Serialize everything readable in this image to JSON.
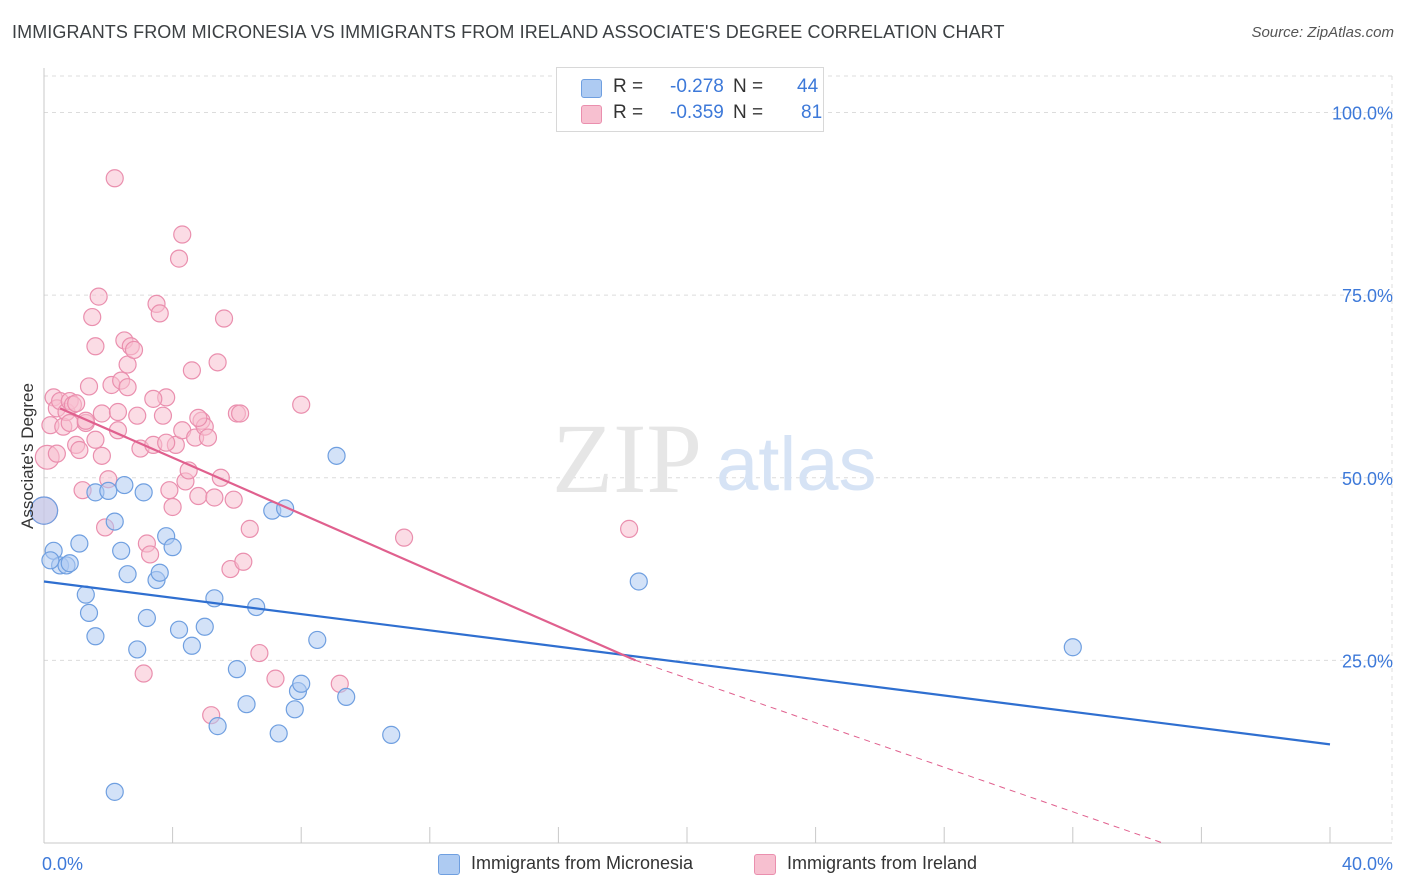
{
  "title": "IMMIGRANTS FROM MICRONESIA VS IMMIGRANTS FROM IRELAND ASSOCIATE'S DEGREE CORRELATION CHART",
  "source": "Source: ZipAtlas.com",
  "watermark": {
    "zip": "ZIP",
    "atlas": "atlas"
  },
  "legend": {
    "rows": [
      {
        "r_label": "R =",
        "r_value": "-0.278",
        "n_label": "N =",
        "n_value": "44"
      },
      {
        "r_label": "R =",
        "r_value": "-0.359",
        "n_label": "N =",
        "n_value": "81"
      }
    ]
  },
  "colors": {
    "blue_fill": "#aecbf2",
    "blue_stroke": "#6f9fe0",
    "blue_line": "#2f6fd0",
    "pink_fill": "#f7c0d0",
    "pink_stroke": "#ea8fae",
    "pink_line": "#e0608e",
    "axis_text": "#3d79d9",
    "grid": "#dcdcdc"
  },
  "chart_data": {
    "type": "scatter",
    "xlabel": "",
    "ylabel": "Associate's Degree",
    "xlim": [
      0,
      40
    ],
    "ylim": [
      0,
      105
    ],
    "x_tick_labels": [
      {
        "value": 0,
        "label": "0.0%"
      },
      {
        "value": 40,
        "label": "40.0%"
      }
    ],
    "y_tick_labels": [
      {
        "value": 25,
        "label": "25.0%"
      },
      {
        "value": 50,
        "label": "50.0%"
      },
      {
        "value": 75,
        "label": "75.0%"
      },
      {
        "value": 100,
        "label": "100.0%"
      }
    ],
    "series": [
      {
        "name": "Immigrants from Micronesia",
        "color": "#6f9fe0",
        "points": [
          [
            0.0,
            45.5,
            1.6
          ],
          [
            0.3,
            40,
            1
          ],
          [
            0.5,
            38,
            1
          ],
          [
            0.7,
            38,
            1
          ],
          [
            0.8,
            38.3,
            1
          ],
          [
            1.1,
            41,
            1
          ],
          [
            1.3,
            34,
            1
          ],
          [
            1.4,
            31.5,
            1
          ],
          [
            1.6,
            28.3,
            1
          ],
          [
            1.6,
            48,
            1
          ],
          [
            2.0,
            48.2,
            1
          ],
          [
            2.2,
            7,
            1
          ],
          [
            2.2,
            44,
            1
          ],
          [
            2.4,
            40,
            1
          ],
          [
            2.5,
            49,
            1
          ],
          [
            2.6,
            36.8,
            1
          ],
          [
            2.9,
            26.5,
            1
          ],
          [
            3.1,
            48,
            1
          ],
          [
            3.2,
            30.8,
            1
          ],
          [
            3.5,
            36,
            1
          ],
          [
            3.6,
            37,
            1
          ],
          [
            3.8,
            42,
            1
          ],
          [
            4.0,
            40.5,
            1
          ],
          [
            4.2,
            29.2,
            1
          ],
          [
            4.6,
            27,
            1
          ],
          [
            5.0,
            29.6,
            1
          ],
          [
            5.3,
            33.5,
            1
          ],
          [
            5.4,
            16,
            1
          ],
          [
            6.0,
            23.8,
            1
          ],
          [
            6.3,
            19,
            1
          ],
          [
            6.6,
            32.3,
            1
          ],
          [
            7.1,
            45.5,
            1
          ],
          [
            7.3,
            15,
            1
          ],
          [
            7.5,
            45.8,
            1
          ],
          [
            7.8,
            18.3,
            1
          ],
          [
            7.9,
            20.8,
            1
          ],
          [
            8.0,
            21.8,
            1
          ],
          [
            8.5,
            27.8,
            1
          ],
          [
            9.1,
            53,
            1
          ],
          [
            9.4,
            20,
            1
          ],
          [
            10.8,
            14.8,
            1
          ],
          [
            18.5,
            35.8,
            1
          ],
          [
            32.0,
            26.8,
            1
          ],
          [
            0.2,
            38.7,
            1
          ]
        ]
      },
      {
        "name": "Immigrants from Ireland",
        "color": "#ea8fae",
        "points": [
          [
            0.0,
            45.5,
            1.6
          ],
          [
            0.1,
            52.8,
            1.4
          ],
          [
            0.2,
            57.2,
            1
          ],
          [
            0.3,
            61,
            1
          ],
          [
            0.4,
            59.5,
            1
          ],
          [
            0.5,
            60.5,
            1
          ],
          [
            0.6,
            57,
            1
          ],
          [
            0.7,
            59,
            1
          ],
          [
            0.8,
            57.5,
            1
          ],
          [
            0.8,
            60.5,
            1
          ],
          [
            0.9,
            60,
            1
          ],
          [
            1.0,
            54.5,
            1
          ],
          [
            1.1,
            53.8,
            1
          ],
          [
            1.2,
            48.3,
            1
          ],
          [
            1.3,
            57.5,
            1
          ],
          [
            1.3,
            57.8,
            1
          ],
          [
            1.4,
            62.5,
            1
          ],
          [
            1.5,
            72,
            1
          ],
          [
            1.6,
            68,
            1
          ],
          [
            1.7,
            74.8,
            1
          ],
          [
            1.8,
            53,
            1
          ],
          [
            1.8,
            58.8,
            1
          ],
          [
            1.9,
            43.2,
            1
          ],
          [
            2.0,
            49.8,
            1
          ],
          [
            2.1,
            62.7,
            1
          ],
          [
            2.2,
            91,
            1
          ],
          [
            2.3,
            59,
            1
          ],
          [
            2.4,
            63.3,
            1
          ],
          [
            2.5,
            68.8,
            1
          ],
          [
            2.6,
            65.5,
            1
          ],
          [
            2.7,
            68,
            1
          ],
          [
            2.8,
            67.5,
            1
          ],
          [
            2.9,
            58.5,
            1
          ],
          [
            3.0,
            54,
            1
          ],
          [
            3.1,
            23.2,
            1
          ],
          [
            3.2,
            41,
            1
          ],
          [
            3.3,
            39.5,
            1
          ],
          [
            3.4,
            54.5,
            1
          ],
          [
            3.5,
            73.8,
            1
          ],
          [
            3.6,
            72.5,
            1
          ],
          [
            3.7,
            58.5,
            1
          ],
          [
            3.8,
            61,
            1
          ],
          [
            3.9,
            48.3,
            1
          ],
          [
            4.0,
            46,
            1
          ],
          [
            4.1,
            54.5,
            1
          ],
          [
            4.2,
            80,
            1
          ],
          [
            4.3,
            83.3,
            1
          ],
          [
            4.3,
            56.5,
            1
          ],
          [
            4.4,
            49.5,
            1
          ],
          [
            4.5,
            51,
            1
          ],
          [
            4.6,
            64.7,
            1
          ],
          [
            4.7,
            55.5,
            1
          ],
          [
            4.8,
            47.5,
            1
          ],
          [
            4.9,
            57.8,
            1
          ],
          [
            5.0,
            57,
            1
          ],
          [
            5.1,
            55.5,
            1
          ],
          [
            5.2,
            17.5,
            1
          ],
          [
            5.3,
            47.3,
            1
          ],
          [
            5.4,
            65.8,
            1
          ],
          [
            5.5,
            50,
            1
          ],
          [
            5.6,
            71.8,
            1
          ],
          [
            5.8,
            37.5,
            1
          ],
          [
            5.9,
            47,
            1
          ],
          [
            6.0,
            58.8,
            1
          ],
          [
            6.1,
            58.8,
            1
          ],
          [
            6.2,
            38.5,
            1
          ],
          [
            6.4,
            43,
            1
          ],
          [
            6.7,
            26,
            1
          ],
          [
            7.2,
            22.5,
            1
          ],
          [
            8.0,
            60,
            1
          ],
          [
            9.2,
            21.8,
            1
          ],
          [
            11.2,
            41.8,
            1
          ],
          [
            18.2,
            43,
            1
          ],
          [
            2.3,
            56.5,
            1
          ],
          [
            3.8,
            54.8,
            1
          ],
          [
            4.8,
            58.2,
            1
          ],
          [
            1.6,
            55.2,
            1
          ],
          [
            1.0,
            60.2,
            1
          ],
          [
            0.4,
            53.3,
            1
          ],
          [
            3.4,
            60.8,
            1
          ],
          [
            2.6,
            62.4,
            1
          ]
        ]
      }
    ],
    "trendlines": [
      {
        "series": "Immigrants from Micronesia",
        "x": [
          0,
          40
        ],
        "y": [
          35.8,
          13.5
        ],
        "dashed_from": null
      },
      {
        "series": "Immigrants from Ireland",
        "x": [
          0.5,
          18.4
        ],
        "y": [
          59.5,
          25.0
        ],
        "dash_to_x": 34.8,
        "dash_to_y": 0
      }
    ]
  }
}
